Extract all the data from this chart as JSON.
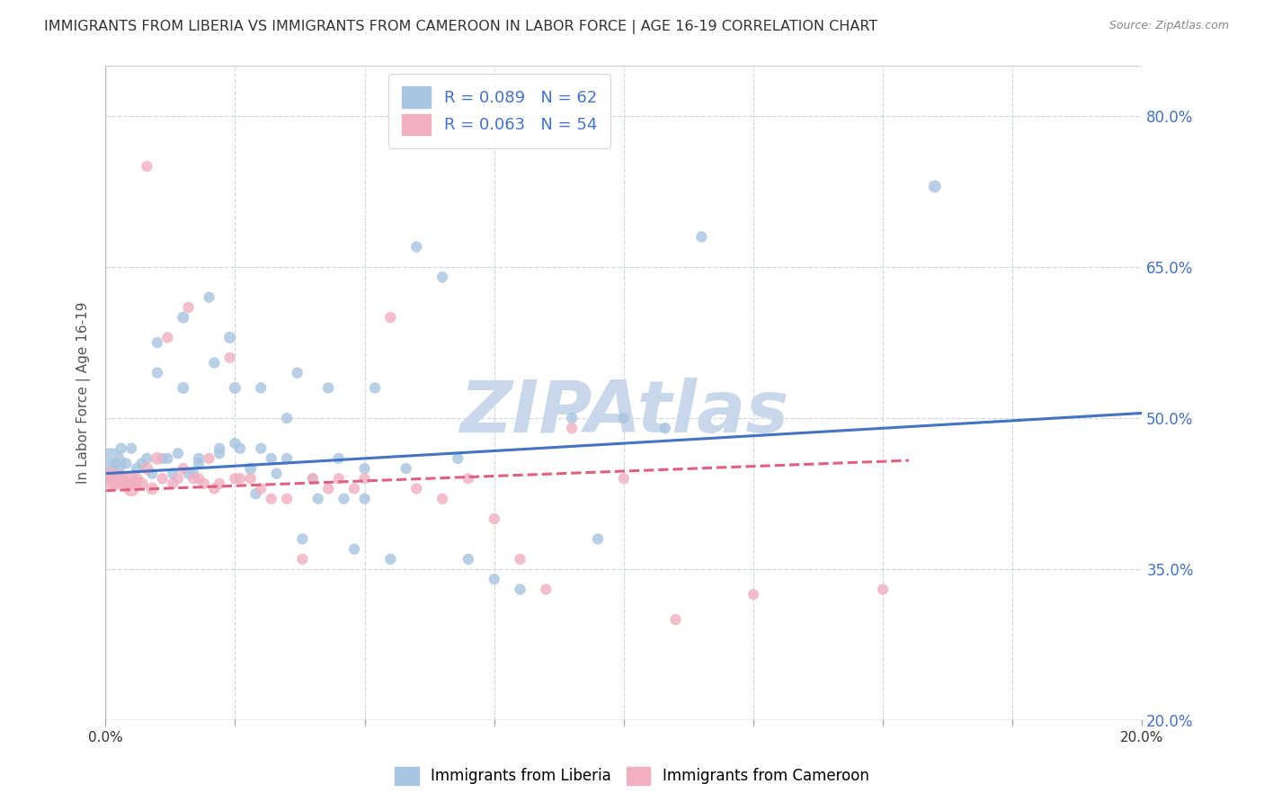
{
  "title": "IMMIGRANTS FROM LIBERIA VS IMMIGRANTS FROM CAMEROON IN LABOR FORCE | AGE 16-19 CORRELATION CHART",
  "source": "Source: ZipAtlas.com",
  "ylabel": "In Labor Force | Age 16-19",
  "xlim": [
    0.0,
    0.2
  ],
  "ylim": [
    0.2,
    0.85
  ],
  "yticks": [
    0.2,
    0.35,
    0.5,
    0.65,
    0.8
  ],
  "ytick_labels": [
    "20.0%",
    "35.0%",
    "50.0%",
    "65.0%",
    "80.0%"
  ],
  "xticks": [
    0.0,
    0.025,
    0.05,
    0.075,
    0.1,
    0.125,
    0.15,
    0.175,
    0.2
  ],
  "color_liberia": "#a8c4e0",
  "color_cameroon": "#f0b0c0",
  "line_color_liberia": "#4472c4",
  "line_color_cameroon": "#e06080",
  "watermark": "ZIPAtlas",
  "watermark_color": "#c8d8ea",
  "blue_scatter_x": [
    0.002,
    0.003,
    0.004,
    0.005,
    0.006,
    0.007,
    0.008,
    0.009,
    0.01,
    0.01,
    0.011,
    0.012,
    0.013,
    0.014,
    0.015,
    0.015,
    0.016,
    0.017,
    0.018,
    0.018,
    0.02,
    0.021,
    0.022,
    0.022,
    0.024,
    0.025,
    0.025,
    0.026,
    0.028,
    0.029,
    0.03,
    0.03,
    0.032,
    0.033,
    0.035,
    0.035,
    0.037,
    0.038,
    0.04,
    0.041,
    0.043,
    0.045,
    0.046,
    0.048,
    0.05,
    0.05,
    0.052,
    0.055,
    0.058,
    0.06,
    0.065,
    0.068,
    0.07,
    0.075,
    0.08,
    0.09,
    0.095,
    0.1,
    0.108,
    0.115,
    0.16,
    0.001
  ],
  "blue_scatter_y": [
    0.455,
    0.47,
    0.455,
    0.47,
    0.45,
    0.455,
    0.46,
    0.445,
    0.575,
    0.545,
    0.46,
    0.46,
    0.445,
    0.465,
    0.6,
    0.53,
    0.445,
    0.445,
    0.46,
    0.455,
    0.62,
    0.555,
    0.465,
    0.47,
    0.58,
    0.53,
    0.475,
    0.47,
    0.45,
    0.425,
    0.53,
    0.47,
    0.46,
    0.445,
    0.5,
    0.46,
    0.545,
    0.38,
    0.44,
    0.42,
    0.53,
    0.46,
    0.42,
    0.37,
    0.45,
    0.42,
    0.53,
    0.36,
    0.45,
    0.67,
    0.64,
    0.46,
    0.36,
    0.34,
    0.33,
    0.5,
    0.38,
    0.5,
    0.49,
    0.68,
    0.73,
    0.455
  ],
  "blue_scatter_size": [
    80,
    80,
    80,
    80,
    80,
    80,
    80,
    80,
    80,
    80,
    80,
    80,
    80,
    80,
    90,
    90,
    80,
    80,
    80,
    80,
    80,
    80,
    80,
    80,
    90,
    90,
    80,
    80,
    90,
    80,
    80,
    80,
    80,
    80,
    80,
    80,
    80,
    80,
    80,
    80,
    80,
    80,
    80,
    80,
    80,
    80,
    80,
    80,
    80,
    80,
    80,
    80,
    80,
    80,
    80,
    80,
    80,
    80,
    80,
    80,
    100,
    600
  ],
  "pink_scatter_x": [
    0.001,
    0.002,
    0.003,
    0.004,
    0.005,
    0.006,
    0.007,
    0.008,
    0.009,
    0.01,
    0.011,
    0.012,
    0.013,
    0.014,
    0.015,
    0.016,
    0.017,
    0.018,
    0.019,
    0.02,
    0.021,
    0.022,
    0.024,
    0.025,
    0.026,
    0.028,
    0.03,
    0.032,
    0.035,
    0.038,
    0.04,
    0.043,
    0.045,
    0.048,
    0.05,
    0.055,
    0.06,
    0.065,
    0.07,
    0.075,
    0.08,
    0.085,
    0.09,
    0.1,
    0.11,
    0.125,
    0.15,
    0.001,
    0.002,
    0.003,
    0.004,
    0.005,
    0.006,
    0.008
  ],
  "pink_scatter_y": [
    0.44,
    0.435,
    0.44,
    0.435,
    0.43,
    0.435,
    0.435,
    0.45,
    0.43,
    0.46,
    0.44,
    0.58,
    0.435,
    0.44,
    0.45,
    0.61,
    0.44,
    0.44,
    0.435,
    0.46,
    0.43,
    0.435,
    0.56,
    0.44,
    0.44,
    0.44,
    0.43,
    0.42,
    0.42,
    0.36,
    0.44,
    0.43,
    0.44,
    0.43,
    0.44,
    0.6,
    0.43,
    0.42,
    0.44,
    0.4,
    0.36,
    0.33,
    0.49,
    0.44,
    0.3,
    0.325,
    0.33,
    0.44,
    0.44,
    0.44,
    0.435,
    0.44,
    0.44,
    0.75
  ],
  "pink_scatter_size": [
    80,
    120,
    160,
    120,
    160,
    100,
    100,
    100,
    100,
    100,
    80,
    80,
    80,
    80,
    80,
    80,
    80,
    80,
    80,
    80,
    80,
    80,
    80,
    80,
    80,
    80,
    80,
    80,
    80,
    80,
    80,
    80,
    80,
    80,
    80,
    80,
    80,
    80,
    80,
    80,
    80,
    80,
    80,
    80,
    80,
    80,
    80,
    300,
    200,
    150,
    120,
    120,
    100,
    80
  ],
  "liberia_trend_x": [
    0.0,
    0.2
  ],
  "liberia_trend_y": [
    0.445,
    0.505
  ],
  "cameroon_trend_x": [
    0.0,
    0.155
  ],
  "cameroon_trend_y": [
    0.428,
    0.458
  ],
  "bg_color": "#ffffff",
  "grid_color": "#d0d8e4",
  "right_axis_color": "#4472c4",
  "title_color": "#333333",
  "axis_label_color": "#555555",
  "legend_R1": "R = 0.089",
  "legend_N1": "N = 62",
  "legend_R2": "R = 0.063",
  "legend_N2": "N = 54"
}
